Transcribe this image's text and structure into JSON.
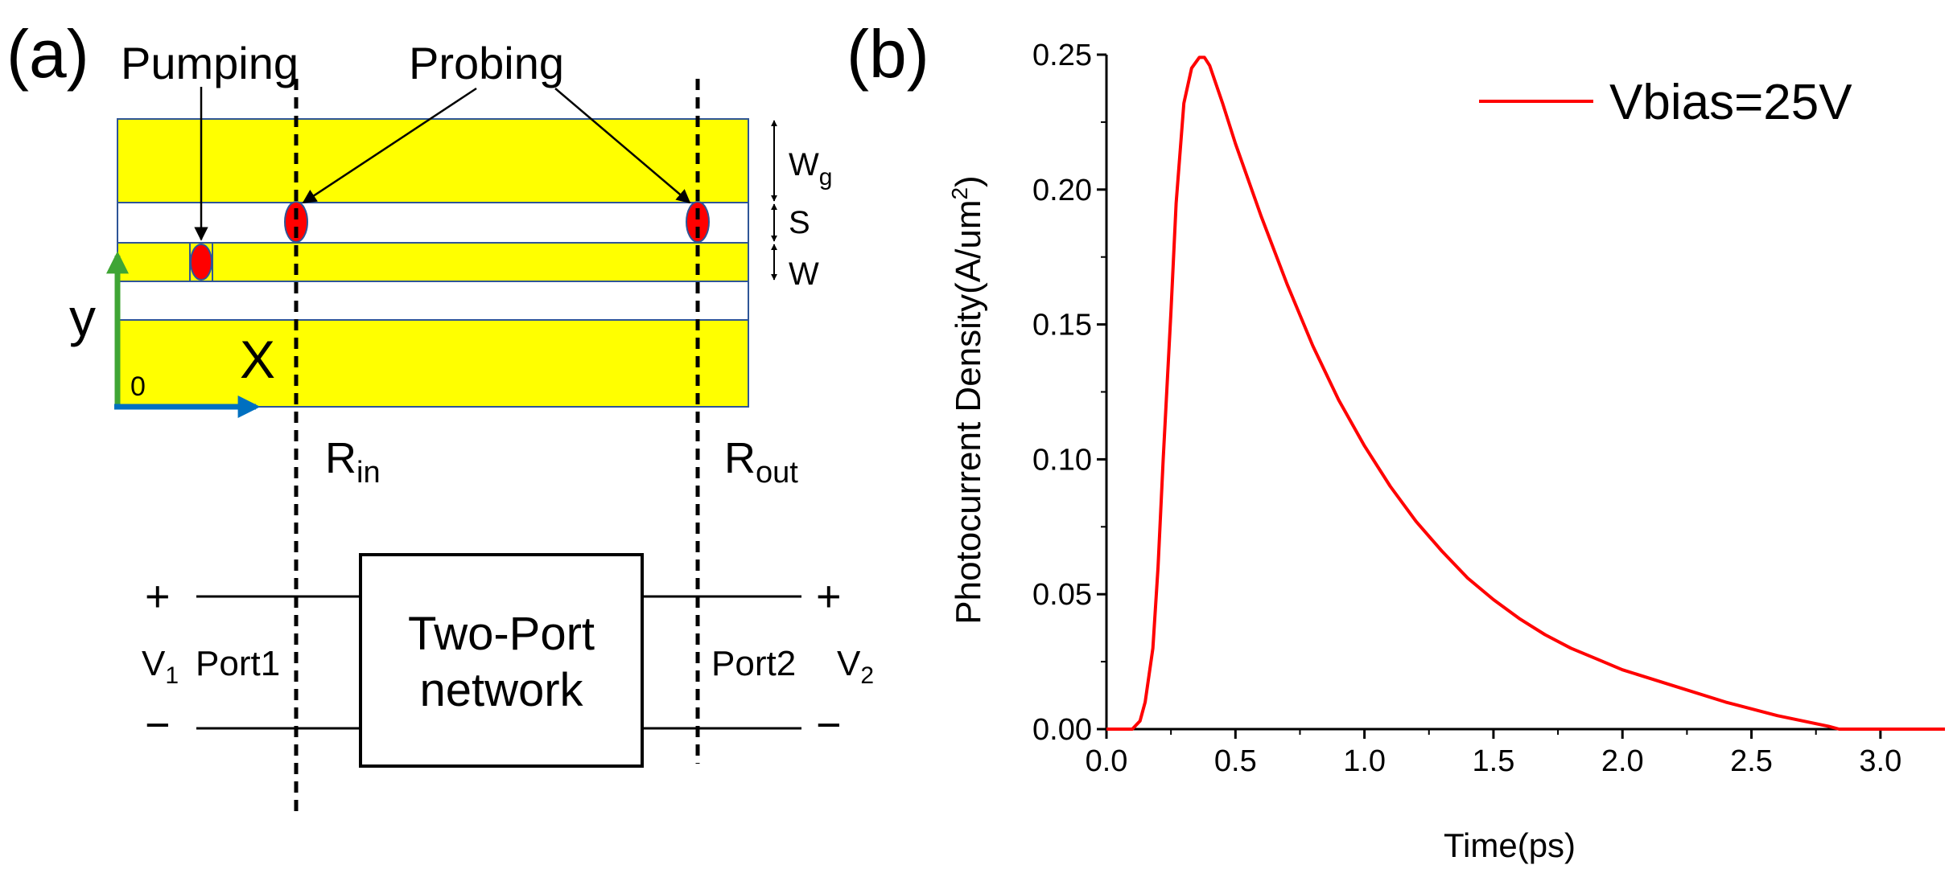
{
  "panel_a": {
    "label": "(a)",
    "pumping": "Pumping",
    "probing": "Probing",
    "dim_wg": "W",
    "dim_wg_sub": "g",
    "dim_s": "S",
    "dim_w": "W",
    "axis_y": "y",
    "axis_x": "X",
    "origin": "0",
    "r_in_main": "R",
    "r_in_sub": "in",
    "r_out_main": "R",
    "r_out_sub": "out",
    "plus": "+",
    "minus": "−",
    "v1_main": "V",
    "v1_sub": "1",
    "v2_main": "V",
    "v2_sub": "2",
    "port1": "Port1",
    "port2": "Port2",
    "box_line1": "Two-Port",
    "box_line2": "network",
    "colors": {
      "metal": "#ffff00",
      "metal_edge": "#2e5597",
      "spot": "#ff0000",
      "y_axis": "#3fa535",
      "x_axis": "#0070c0"
    }
  },
  "panel_b": {
    "label": "(b)"
  },
  "chart_data": {
    "type": "line",
    "title": "",
    "xlabel": "Time(ps)",
    "ylabel_main": "Photocurrent Density(A/um",
    "ylabel_sup": "2",
    "ylabel_close": ")",
    "xlim": [
      0,
      3.25
    ],
    "ylim": [
      0,
      0.25
    ],
    "x_ticks": [
      "0.0",
      "0.5",
      "1.0",
      "1.5",
      "2.0",
      "2.5",
      "3.0"
    ],
    "y_ticks": [
      "0.00",
      "0.05",
      "0.10",
      "0.15",
      "0.20",
      "0.25"
    ],
    "legend_position": "top-right",
    "series": [
      {
        "name": "Vbias=25V",
        "color": "#ff0000",
        "x": [
          0,
          0.1,
          0.13,
          0.15,
          0.18,
          0.2,
          0.22,
          0.25,
          0.27,
          0.3,
          0.33,
          0.36,
          0.38,
          0.4,
          0.45,
          0.5,
          0.6,
          0.7,
          0.8,
          0.9,
          1.0,
          1.1,
          1.2,
          1.3,
          1.4,
          1.5,
          1.6,
          1.7,
          1.8,
          1.9,
          2.0,
          2.2,
          2.4,
          2.6,
          2.8,
          2.84,
          3.0,
          3.25
        ],
        "y": [
          0,
          0.0,
          0.003,
          0.01,
          0.03,
          0.06,
          0.1,
          0.155,
          0.195,
          0.232,
          0.245,
          0.249,
          0.249,
          0.246,
          0.232,
          0.217,
          0.19,
          0.165,
          0.142,
          0.122,
          0.105,
          0.09,
          0.077,
          0.066,
          0.056,
          0.048,
          0.041,
          0.035,
          0.03,
          0.026,
          0.022,
          0.016,
          0.01,
          0.005,
          0.001,
          0.0,
          0.0,
          0.0
        ]
      }
    ]
  }
}
